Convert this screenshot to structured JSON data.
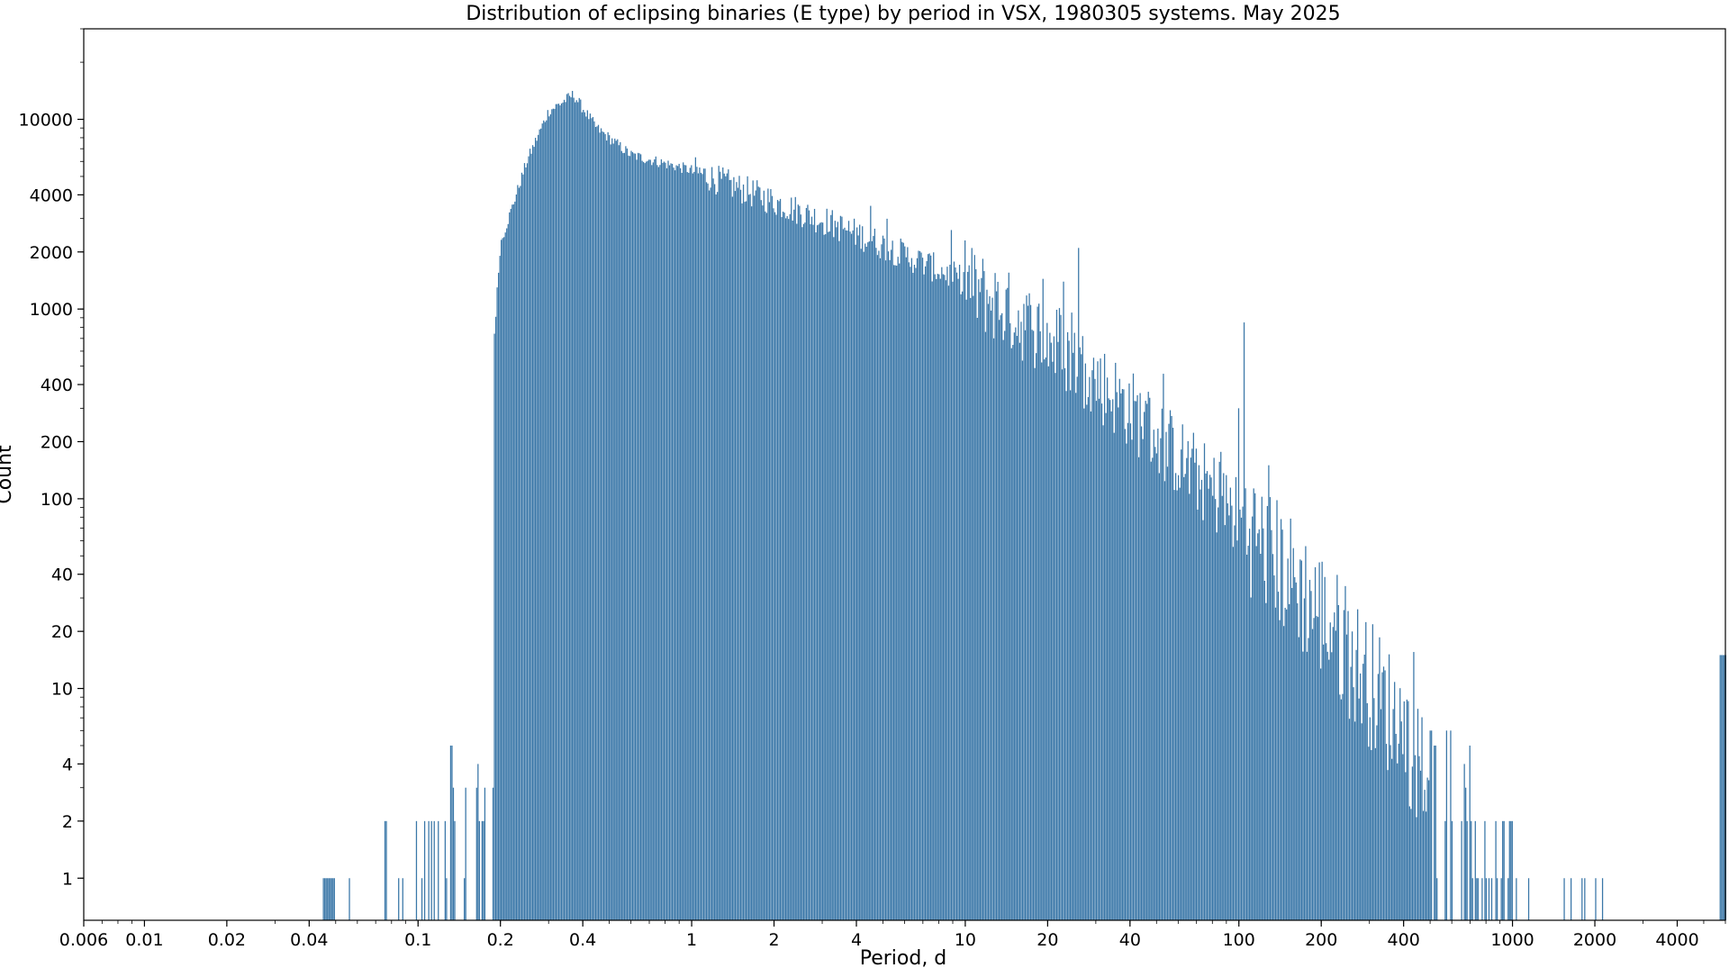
{
  "chart_data": {
    "type": "bar",
    "title": "Distribution of eclipsing binaries (E type) by period in VSX, 1980305 systems. May 2025",
    "xlabel": "Period, d",
    "ylabel": "Count",
    "x_scale": "log",
    "y_scale": "log",
    "xlim": [
      0.006,
      6000
    ],
    "ylim": [
      0.6,
      30000
    ],
    "x_ticks": [
      "0.006",
      "0.01",
      "0.02",
      "0.04",
      "0.1",
      "0.2",
      "0.4",
      "1",
      "2",
      "4",
      "10",
      "20",
      "40",
      "100",
      "200",
      "400",
      "1000",
      "2000",
      "4000"
    ],
    "y_ticks": [
      "1",
      "2",
      "4",
      "10",
      "20",
      "40",
      "100",
      "200",
      "400",
      "1000",
      "2000",
      "4000",
      "10000"
    ],
    "grid": false,
    "bar_color": "#3a77a8",
    "bars_description": "log-binned histogram of period in days",
    "bins_per_decade": 200,
    "series": [
      {
        "values_profile": [
          {
            "period": 0.048,
            "count": 1
          },
          {
            "period": 0.08,
            "count": 1
          },
          {
            "period": 0.1,
            "count": 1
          },
          {
            "period": 0.12,
            "count": 2
          },
          {
            "period": 0.15,
            "count": 4
          },
          {
            "period": 0.2,
            "count": 2200
          },
          {
            "period": 0.25,
            "count": 6000
          },
          {
            "period": 0.3,
            "count": 11000
          },
          {
            "period": 0.37,
            "count": 13500
          },
          {
            "period": 0.45,
            "count": 9000
          },
          {
            "period": 0.6,
            "count": 6500
          },
          {
            "period": 1.0,
            "count": 5400
          },
          {
            "period": 2.0,
            "count": 3700
          },
          {
            "period": 4.0,
            "count": 2500
          },
          {
            "period": 10.0,
            "count": 1400
          },
          {
            "period": 20.0,
            "count": 700
          },
          {
            "period": 40.0,
            "count": 300
          },
          {
            "period": 100.0,
            "count": 80
          },
          {
            "period": 200.0,
            "count": 25
          },
          {
            "period": 400.0,
            "count": 6
          },
          {
            "period": 600.0,
            "count": 2
          },
          {
            "period": 1000.0,
            "count": 1
          },
          {
            "period": 2500.0,
            "count": 1
          },
          {
            "period": 5800.0,
            "count": 15
          }
        ],
        "spikes": [
          {
            "period": 4.5,
            "count": 3500
          },
          {
            "period": 10.0,
            "count": 2300
          },
          {
            "period": 26.0,
            "count": 2100
          },
          {
            "period": 100.0,
            "count": 300
          },
          {
            "period": 105.0,
            "count": 850
          }
        ]
      }
    ]
  }
}
